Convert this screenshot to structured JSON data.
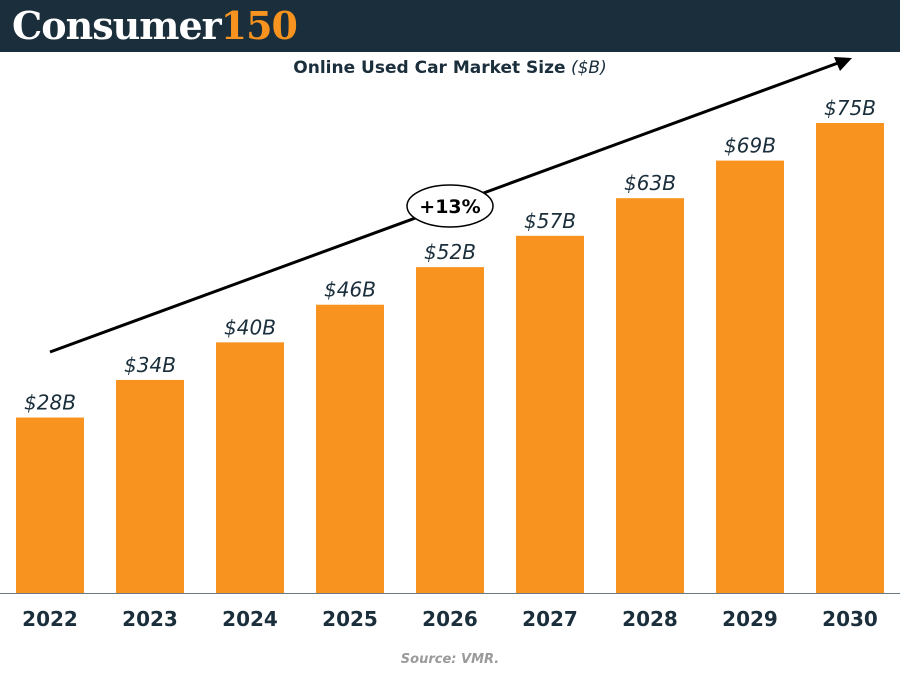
{
  "header": {
    "brand_word": "Consumer",
    "brand_number": "150"
  },
  "colors": {
    "header_bg": "#1a2e3b",
    "bar": "#f7931e",
    "text_dark": "#1a2e3b",
    "source_text": "#9a9a9a"
  },
  "chart_data": {
    "type": "bar",
    "title": "Online Used Car Market Size",
    "title_unit": "($B)",
    "categories": [
      "2022",
      "2023",
      "2024",
      "2025",
      "2026",
      "2027",
      "2028",
      "2029",
      "2030"
    ],
    "values": [
      28,
      34,
      40,
      46,
      52,
      57,
      63,
      69,
      75
    ],
    "value_labels": [
      "$28B",
      "$34B",
      "$40B",
      "$46B",
      "$52B",
      "$57B",
      "$63B",
      "$69B",
      "$75B"
    ],
    "ylim": [
      0,
      85
    ],
    "xlabel": "",
    "ylabel": "",
    "grid": false,
    "legend": "none",
    "annotation": {
      "kind": "trend-arrow",
      "label": "+13%"
    }
  },
  "footer": {
    "source": "Source: VMR."
  }
}
